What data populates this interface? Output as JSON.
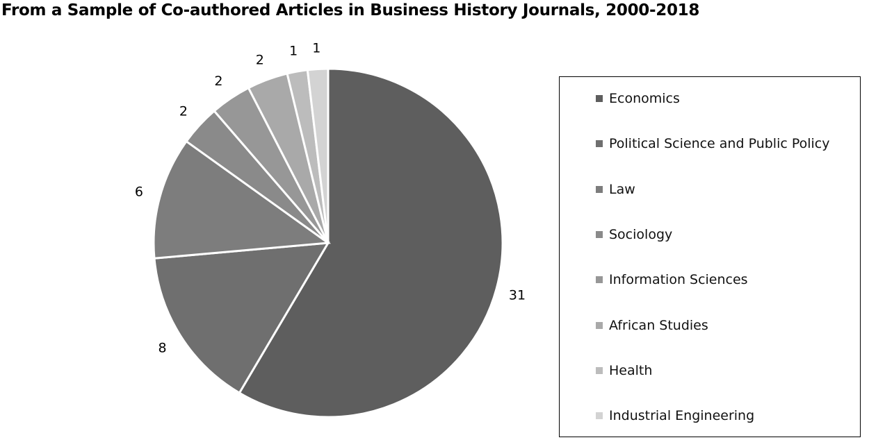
{
  "chart_data": {
    "type": "pie",
    "title": "From a Sample of Co-authored Articles in Business History Journals, 2000-2018",
    "categories": [
      "Economics",
      "Political Science and Public Policy",
      "Law",
      "Sociology",
      "Information Sciences",
      "African Studies",
      "Health",
      "Industrial Engineering"
    ],
    "values": [
      31,
      8,
      6,
      2,
      2,
      2,
      1,
      1
    ],
    "colors": [
      "#5e5e5e",
      "#6f6f6f",
      "#7d7d7d",
      "#8a8a8a",
      "#979797",
      "#a9a9a9",
      "#bcbcbc",
      "#d3d3d3"
    ],
    "start": "top",
    "direction": "clockwise",
    "legend_position": "right"
  }
}
